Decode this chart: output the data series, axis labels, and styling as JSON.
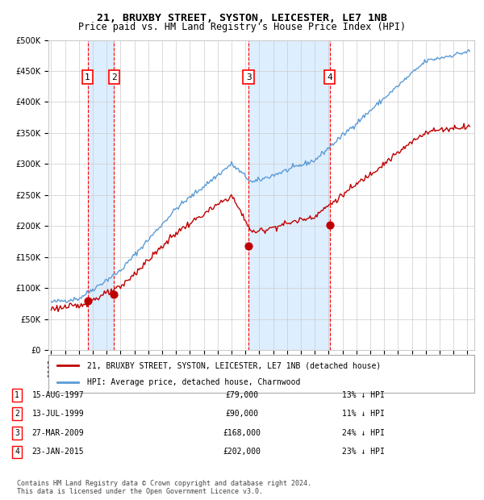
{
  "title": "21, BRUXBY STREET, SYSTON, LEICESTER, LE7 1NB",
  "subtitle": "Price paid vs. HM Land Registry's House Price Index (HPI)",
  "footer1": "Contains HM Land Registry data © Crown copyright and database right 2024.",
  "footer2": "This data is licensed under the Open Government Licence v3.0.",
  "legend_line1": "21, BRUXBY STREET, SYSTON, LEICESTER, LE7 1NB (detached house)",
  "legend_line2": "HPI: Average price, detached house, Charnwood",
  "transactions": [
    {
      "num": 1,
      "date": "15-AUG-1997",
      "price": 79000,
      "pct": "13%",
      "dir": "↓",
      "x_year": 1997.62
    },
    {
      "num": 2,
      "date": "13-JUL-1999",
      "price": 90000,
      "pct": "11%",
      "dir": "↓",
      "x_year": 1999.53
    },
    {
      "num": 3,
      "date": "27-MAR-2009",
      "price": 168000,
      "pct": "24%",
      "dir": "↓",
      "x_year": 2009.23
    },
    {
      "num": 4,
      "date": "23-JAN-2015",
      "price": 202000,
      "pct": "23%",
      "dir": "↓",
      "x_year": 2015.07
    }
  ],
  "hpi_color": "#5b9bd5",
  "price_color": "#c00000",
  "vline_color": "#ff0000",
  "shade_color": "#ddeeff",
  "grid_color": "#cccccc",
  "background_color": "#ffffff",
  "ylim": [
    0,
    500000
  ],
  "yticks": [
    0,
    50000,
    100000,
    150000,
    200000,
    250000,
    300000,
    350000,
    400000,
    450000,
    500000
  ],
  "xlim_start": 1994.8,
  "xlim_end": 2025.5
}
